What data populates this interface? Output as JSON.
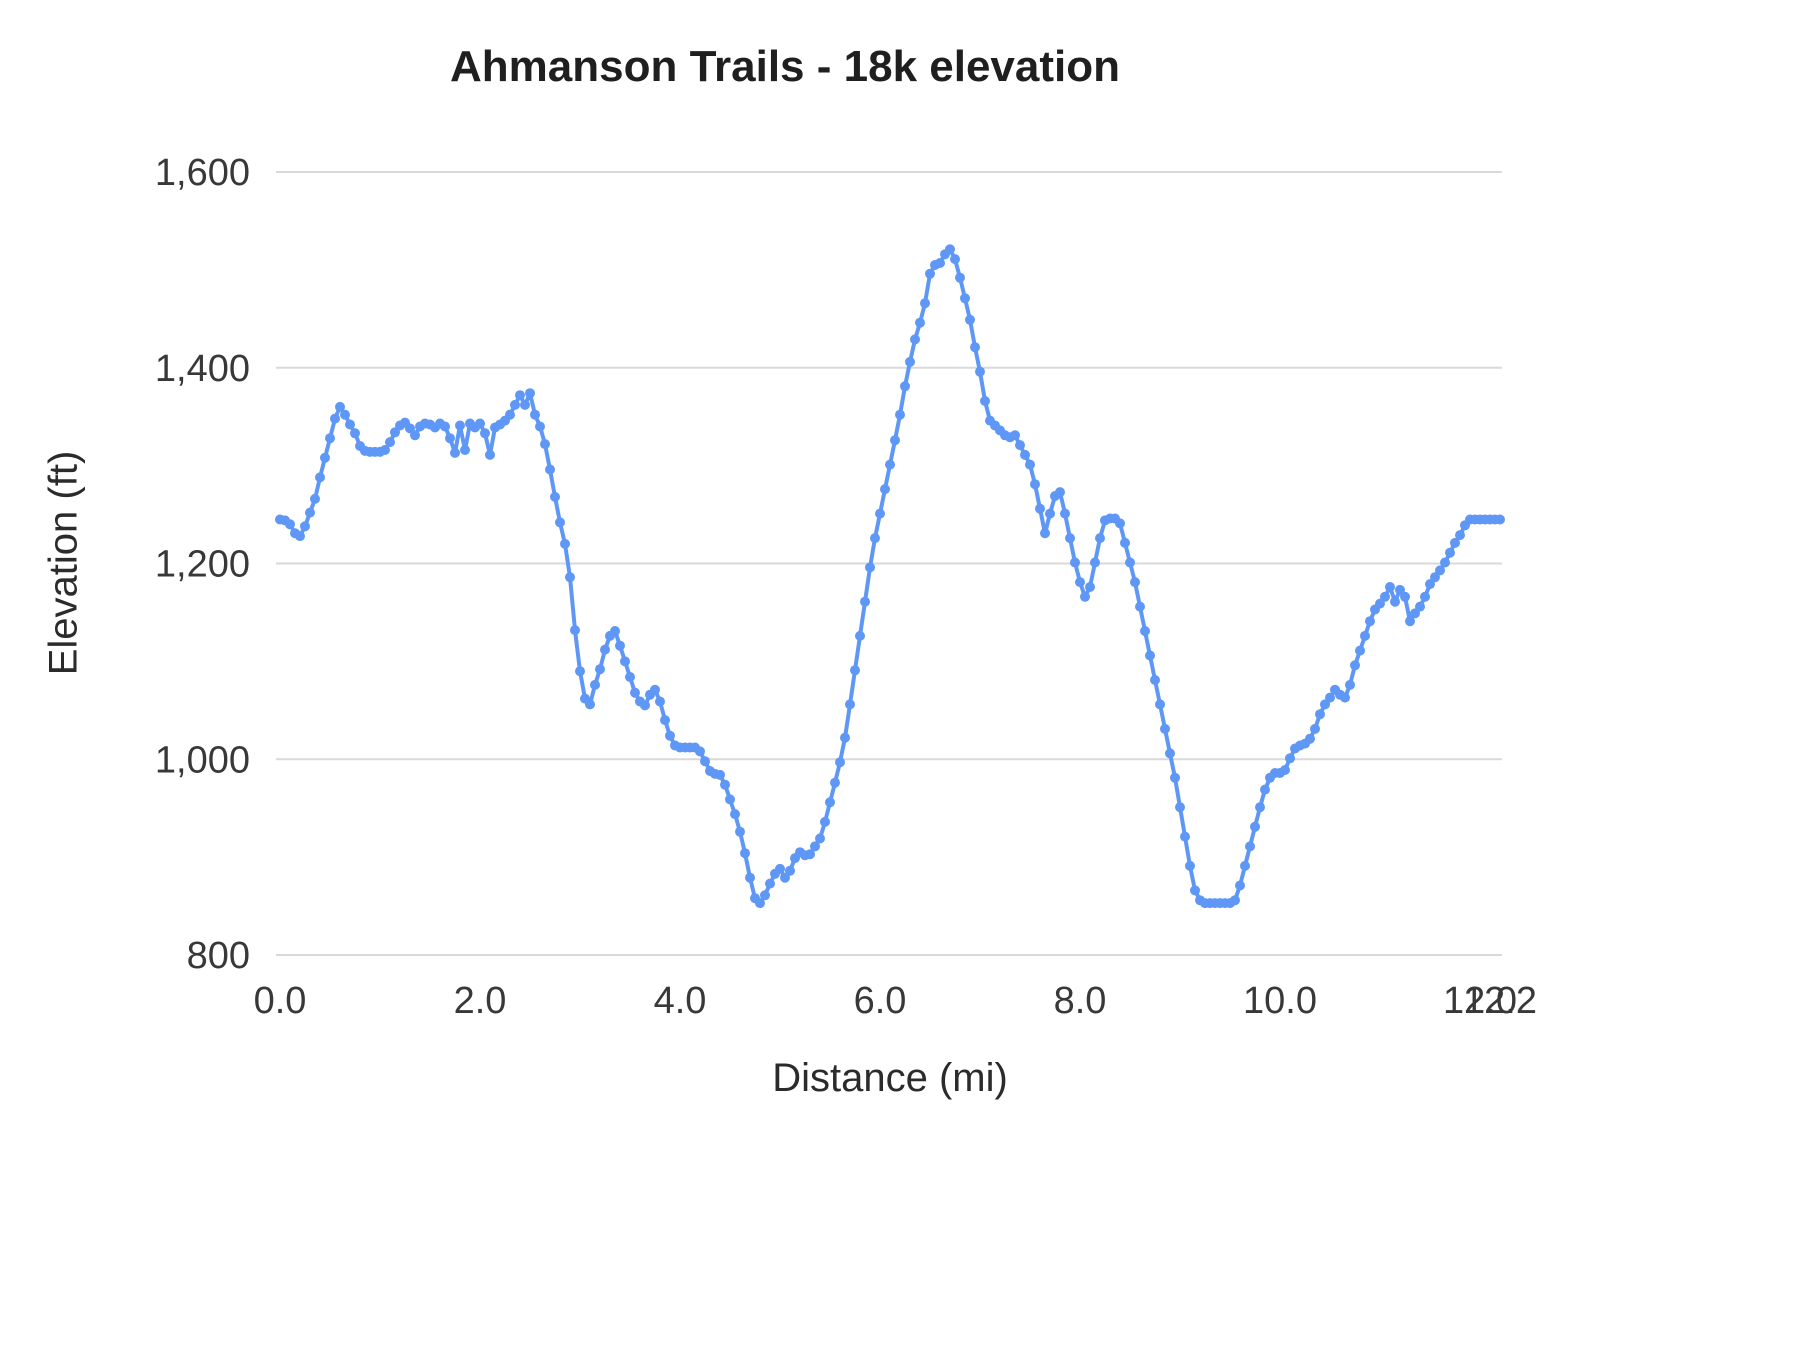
{
  "chart_data": {
    "type": "line",
    "title": "Ahmanson Trails - 18k elevation",
    "xlabel": "Distance (mi)",
    "ylabel": "Elevation (ft)",
    "legend": "none",
    "grid": "horizontal",
    "marker": "circle",
    "line_color": "#5e97f6",
    "grid_color": "#d9d9d9",
    "xlim": [
      0,
      12.2
    ],
    "ylim": [
      800,
      1600
    ],
    "x_ticks": [
      0,
      2,
      4,
      6,
      8,
      10,
      12,
      12.2
    ],
    "x_tick_labels": [
      "0.0",
      "2.0",
      "4.0",
      "6.0",
      "8.0",
      "10.0",
      "12.0",
      "12.2"
    ],
    "y_ticks": [
      800,
      1000,
      1200,
      1400,
      1600
    ],
    "y_tick_labels": [
      "800",
      "1,000",
      "1,200",
      "1,400",
      "1,600"
    ],
    "x_start": 0.0,
    "x_step": 0.05,
    "elevations": [
      1245,
      1244,
      1240,
      1231,
      1228,
      1238,
      1252,
      1266,
      1288,
      1308,
      1328,
      1348,
      1360,
      1352,
      1342,
      1333,
      1320,
      1315,
      1314,
      1314,
      1314,
      1316,
      1324,
      1334,
      1341,
      1344,
      1338,
      1331,
      1340,
      1343,
      1342,
      1339,
      1343,
      1340,
      1328,
      1313,
      1341,
      1316,
      1343,
      1339,
      1343,
      1333,
      1311,
      1339,
      1342,
      1346,
      1352,
      1362,
      1372,
      1362,
      1374,
      1352,
      1340,
      1322,
      1296,
      1268,
      1242,
      1220,
      1186,
      1132,
      1090,
      1062,
      1056,
      1076,
      1092,
      1112,
      1126,
      1131,
      1116,
      1100,
      1084,
      1068,
      1059,
      1055,
      1066,
      1071,
      1059,
      1040,
      1024,
      1014,
      1012,
      1012,
      1012,
      1012,
      1008,
      998,
      988,
      985,
      984,
      974,
      959,
      944,
      926,
      904,
      879,
      858,
      853,
      861,
      873,
      883,
      888,
      879,
      886,
      899,
      905,
      902,
      903,
      911,
      919,
      936,
      956,
      976,
      997,
      1022,
      1056,
      1091,
      1126,
      1161,
      1196,
      1226,
      1251,
      1276,
      1301,
      1326,
      1352,
      1381,
      1406,
      1429,
      1446,
      1466,
      1496,
      1505,
      1507,
      1516,
      1521,
      1511,
      1492,
      1471,
      1449,
      1421,
      1396,
      1366,
      1346,
      1341,
      1336,
      1331,
      1329,
      1331,
      1321,
      1311,
      1301,
      1281,
      1256,
      1231,
      1251,
      1269,
      1273,
      1251,
      1226,
      1201,
      1181,
      1166,
      1176,
      1201,
      1226,
      1244,
      1246,
      1246,
      1241,
      1221,
      1201,
      1181,
      1156,
      1131,
      1106,
      1081,
      1056,
      1031,
      1006,
      981,
      951,
      921,
      891,
      866,
      856,
      853,
      853,
      853,
      853,
      853,
      853,
      856,
      871,
      891,
      911,
      931,
      951,
      969,
      981,
      986,
      986,
      989,
      1001,
      1011,
      1014,
      1016,
      1021,
      1031,
      1046,
      1056,
      1063,
      1071,
      1066,
      1063,
      1076,
      1096,
      1111,
      1126,
      1141,
      1153,
      1159,
      1166,
      1176,
      1161,
      1173,
      1166,
      1141,
      1149,
      1156,
      1166,
      1179,
      1186,
      1193,
      1201,
      1211,
      1221,
      1229,
      1239,
      1245,
      1245,
      1245,
      1245,
      1245,
      1245,
      1245
    ]
  }
}
